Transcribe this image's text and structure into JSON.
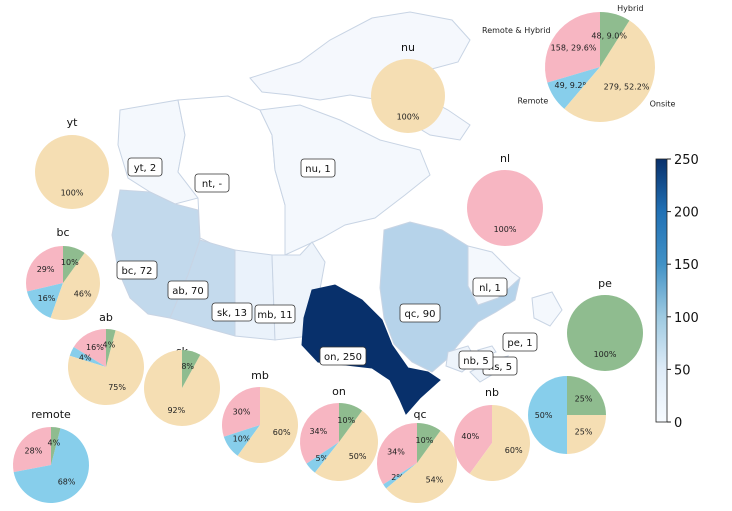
{
  "colors": {
    "remote_hybrid": "#f7b6c2",
    "remote": "#87ceeb",
    "onsite": "#f5deb3",
    "hybrid": "#8fbc8f",
    "scale_low": "#f7fbff",
    "scale_high": "#08306b"
  },
  "colorbar": {
    "min": 0,
    "max": 250,
    "ticks": [
      "0",
      "50",
      "100",
      "150",
      "200",
      "250"
    ]
  },
  "summary_pie": {
    "slices": [
      {
        "category": "Remote & Hybrid",
        "label": "158, 29.6%",
        "value": 158,
        "color_key": "remote_hybrid"
      },
      {
        "category": "Remote",
        "label": "49, 9.2%",
        "value": 49,
        "color_key": "remote"
      },
      {
        "category": "Onsite",
        "label": "279, 52.2%",
        "value": 279,
        "color_key": "onsite"
      },
      {
        "category": "Hybrid",
        "label": "48, 9.0%",
        "value": 48,
        "color_key": "hybrid"
      }
    ]
  },
  "provinces": [
    {
      "code": "yt",
      "count": 2,
      "tag": "yt, 2"
    },
    {
      "code": "nt",
      "count": 0,
      "tag": "nt, -"
    },
    {
      "code": "nu",
      "count": 1,
      "tag": "nu, 1"
    },
    {
      "code": "bc",
      "count": 72,
      "tag": "bc, 72"
    },
    {
      "code": "ab",
      "count": 70,
      "tag": "ab, 70"
    },
    {
      "code": "sk",
      "count": 13,
      "tag": "sk, 13"
    },
    {
      "code": "mb",
      "count": 11,
      "tag": "mb, 11"
    },
    {
      "code": "on",
      "count": 250,
      "tag": "on, 250"
    },
    {
      "code": "qc",
      "count": 90,
      "tag": "qc, 90"
    },
    {
      "code": "nl",
      "count": 1,
      "tag": "nl, 1"
    },
    {
      "code": "pe",
      "count": 1,
      "tag": "pe, 1"
    },
    {
      "code": "nb",
      "count": 5,
      "tag": "nb, 5"
    },
    {
      "code": "ns",
      "count": 5,
      "tag": "ns, 5"
    }
  ],
  "pies": [
    {
      "id": "yt",
      "title": "yt",
      "slices": [
        {
          "key": "onsite",
          "value": 100,
          "label": "100%"
        }
      ]
    },
    {
      "id": "nu",
      "title": "nu",
      "slices": [
        {
          "key": "onsite",
          "value": 100,
          "label": "100%"
        }
      ]
    },
    {
      "id": "nl",
      "title": "nl",
      "slices": [
        {
          "key": "remote_hybrid",
          "value": 100,
          "label": "100%"
        }
      ]
    },
    {
      "id": "pe",
      "title": "pe",
      "slices": [
        {
          "key": "hybrid",
          "value": 100,
          "label": "100%"
        }
      ]
    },
    {
      "id": "bc",
      "title": "bc",
      "slices": [
        {
          "key": "remote_hybrid",
          "value": 29,
          "label": "29%"
        },
        {
          "key": "remote",
          "value": 16,
          "label": "16%"
        },
        {
          "key": "onsite",
          "value": 46,
          "label": "46%"
        },
        {
          "key": "hybrid",
          "value": 10,
          "label": "10%"
        }
      ]
    },
    {
      "id": "ab",
      "title": "ab",
      "slices": [
        {
          "key": "remote_hybrid",
          "value": 16,
          "label": "16%"
        },
        {
          "key": "remote",
          "value": 4,
          "label": "4%"
        },
        {
          "key": "onsite",
          "value": 75,
          "label": "75%"
        },
        {
          "key": "hybrid",
          "value": 4,
          "label": "4%"
        }
      ]
    },
    {
      "id": "sk",
      "title": "sk",
      "slices": [
        {
          "key": "onsite",
          "value": 92,
          "label": "92%"
        },
        {
          "key": "hybrid",
          "value": 8,
          "label": "8%"
        }
      ]
    },
    {
      "id": "mb",
      "title": "mb",
      "slices": [
        {
          "key": "remote_hybrid",
          "value": 30,
          "label": "30%"
        },
        {
          "key": "remote",
          "value": 10,
          "label": "10%"
        },
        {
          "key": "onsite",
          "value": 60,
          "label": "60%"
        }
      ]
    },
    {
      "id": "on",
      "title": "on",
      "slices": [
        {
          "key": "remote_hybrid",
          "value": 34,
          "label": "34%"
        },
        {
          "key": "remote",
          "value": 5,
          "label": "5%"
        },
        {
          "key": "onsite",
          "value": 50,
          "label": "50%"
        },
        {
          "key": "hybrid",
          "value": 10,
          "label": "10%"
        }
      ]
    },
    {
      "id": "qc",
      "title": "qc",
      "slices": [
        {
          "key": "remote_hybrid",
          "value": 34,
          "label": "34%"
        },
        {
          "key": "remote",
          "value": 2,
          "label": "2%"
        },
        {
          "key": "onsite",
          "value": 54,
          "label": "54%"
        },
        {
          "key": "hybrid",
          "value": 10,
          "label": "10%"
        }
      ]
    },
    {
      "id": "nb",
      "title": "nb",
      "slices": [
        {
          "key": "remote_hybrid",
          "value": 40,
          "label": "40%"
        },
        {
          "key": "onsite",
          "value": 60,
          "label": "60%"
        }
      ]
    },
    {
      "id": "ns",
      "title": "ns",
      "slices": [
        {
          "key": "remote",
          "value": 50,
          "label": "50%"
        },
        {
          "key": "onsite",
          "value": 25,
          "label": "25%"
        },
        {
          "key": "hybrid",
          "value": 25,
          "label": "25%"
        }
      ]
    },
    {
      "id": "remote",
      "title": "remote",
      "slices": [
        {
          "key": "remote_hybrid",
          "value": 28,
          "label": "28%"
        },
        {
          "key": "remote",
          "value": 68,
          "label": "68%"
        },
        {
          "key": "hybrid",
          "value": 4,
          "label": "4%"
        }
      ]
    }
  ]
}
